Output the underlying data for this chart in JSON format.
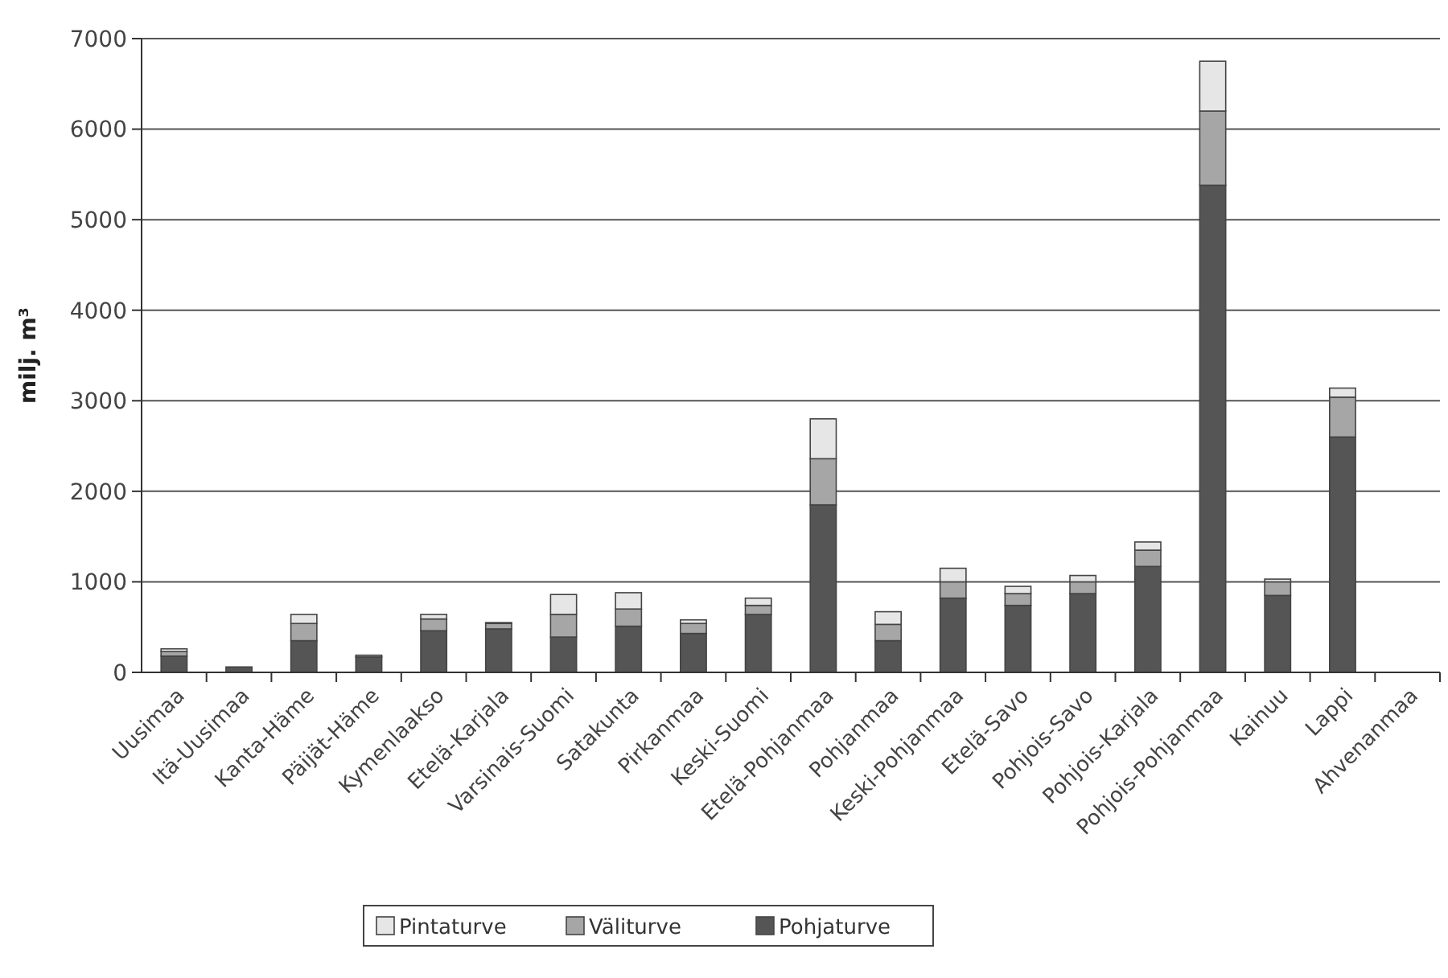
{
  "chart_data": {
    "type": "bar",
    "stacked": true,
    "ylabel": "milj. m³",
    "categories": [
      "Uusimaa",
      "Itä-Uusimaa",
      "Kanta-Häme",
      "Päijät-Häme",
      "Kymenlaakso",
      "Etelä-Karjala",
      "Varsinais-Suomi",
      "Satakunta",
      "Pirkanmaa",
      "Keski-Suomi",
      "Etelä-Pohjanmaa",
      "Pohjanmaa",
      "Keski-Pohjanmaa",
      "Etelä-Savo",
      "Pohjois-Savo",
      "Pohjois-Karjala",
      "Pohjois-Pohjanmaa",
      "Kainuu",
      "Lappi",
      "Ahvenanmaa"
    ],
    "series": [
      {
        "name": "Pohjaturve",
        "color": "#555555",
        "values": [
          180,
          60,
          350,
          170,
          460,
          480,
          390,
          510,
          430,
          640,
          1850,
          350,
          820,
          740,
          870,
          1170,
          5380,
          850,
          2600,
          0
        ]
      },
      {
        "name": "Väliturve",
        "color": "#a6a6a6",
        "values": [
          50,
          0,
          190,
          20,
          130,
          60,
          250,
          190,
          110,
          100,
          510,
          180,
          180,
          130,
          130,
          180,
          820,
          150,
          440,
          0
        ]
      },
      {
        "name": "Pintaturve",
        "color": "#e6e6e6",
        "values": [
          30,
          0,
          100,
          0,
          50,
          10,
          220,
          180,
          40,
          80,
          440,
          140,
          150,
          80,
          70,
          90,
          550,
          30,
          100,
          0
        ]
      }
    ],
    "ylim": [
      0,
      7000
    ],
    "yticks": [
      0,
      1000,
      2000,
      3000,
      4000,
      5000,
      6000,
      7000
    ],
    "grid": "y",
    "legend": "bottom"
  }
}
